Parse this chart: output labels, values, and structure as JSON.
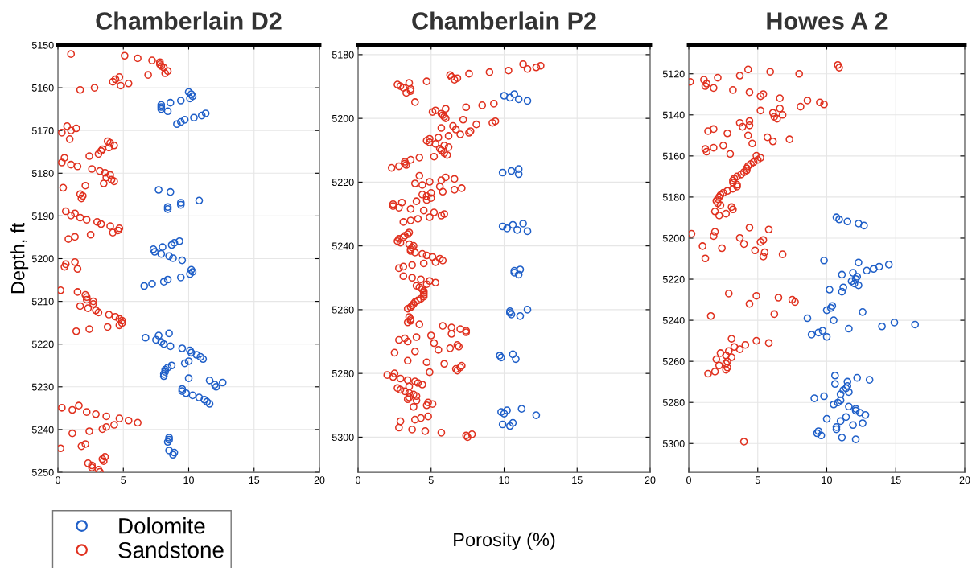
{
  "chart_data": [
    {
      "type": "scatter",
      "title": "Chamberlain D2",
      "ylabel": "Depth, ft",
      "xlim": [
        0,
        20
      ],
      "xticks": [
        0,
        5,
        10,
        15,
        20
      ],
      "ylim": [
        5250,
        5150
      ],
      "yticks": [
        5150,
        5160,
        5170,
        5180,
        5190,
        5200,
        5210,
        5220,
        5230,
        5240,
        5250
      ],
      "grid": true,
      "marker": "circle",
      "legend": "bottom left",
      "series": [
        {
          "name": "Dolomite",
          "color": "#1f5fc8",
          "x": [
            10.0,
            10.2,
            10.3,
            10.1,
            9.4,
            8.6,
            7.9,
            7.9,
            7.9,
            8.4,
            11.3,
            11.0,
            10.4,
            9.7,
            9.4,
            9.1,
            7.7,
            8.6,
            10.8,
            9.4,
            9.4,
            8.4,
            8.4,
            9.3,
            8.9,
            8.7,
            8.0,
            7.3,
            7.4,
            7.9,
            8.5,
            8.8,
            9.5,
            10.2,
            10.3,
            10.1,
            9.4,
            8.4,
            8.1,
            7.2,
            6.6,
            8.5,
            7.7,
            6.7,
            7.5,
            7.9,
            8.1,
            8.6,
            9.5,
            10.1,
            10.2,
            10.6,
            10.9,
            11.1,
            10.0,
            9.7,
            8.7,
            8.4,
            8.2,
            8.2,
            8.1,
            8.1,
            10.0,
            11.6,
            12.6,
            12.0,
            12.1,
            9.5,
            9.5,
            9.8,
            10.3,
            10.8,
            11.2,
            11.4,
            11.6,
            8.5,
            8.5,
            8.4,
            8.5,
            8.9,
            8.8
          ],
          "values": [
            5161.0,
            5161.5,
            5162.0,
            5162.5,
            5163.0,
            5163.5,
            5164.0,
            5164.5,
            5165.0,
            5165.5,
            5166.0,
            5166.5,
            5167.0,
            5167.5,
            5168.0,
            5168.5,
            5183.9,
            5184.4,
            5186.4,
            5186.9,
            5187.4,
            5187.9,
            5188.4,
            5195.9,
            5196.3,
            5196.8,
            5197.3,
            5197.8,
            5198.4,
            5198.9,
            5199.4,
            5199.9,
            5200.4,
            5202.6,
            5203.1,
            5203.6,
            5204.4,
            5204.9,
            5205.4,
            5205.9,
            5206.4,
            5217.5,
            5218.0,
            5218.5,
            5219.0,
            5219.5,
            5220.0,
            5220.5,
            5221.0,
            5221.5,
            5222.0,
            5222.5,
            5223.0,
            5223.5,
            5224.0,
            5224.5,
            5225.0,
            5225.5,
            5226.0,
            5226.5,
            5227.0,
            5227.5,
            5228.0,
            5228.5,
            5229.0,
            5229.5,
            5230.0,
            5230.5,
            5231.0,
            5231.5,
            5232.0,
            5232.5,
            5233.0,
            5233.5,
            5234.0,
            5241.9,
            5242.4,
            5242.9,
            5244.9,
            5245.4,
            5245.9
          ]
        },
        {
          "name": "Sandstone",
          "color": "#e0301e",
          "x": [
            1.0,
            5.1,
            6.1,
            7.2,
            7.8,
            7.8,
            7.9,
            8.1,
            8.4,
            8.2,
            6.9,
            4.7,
            4.4,
            4.2,
            5.4,
            4.8,
            2.8,
            1.7,
            0.7,
            1.4,
            1.0,
            0.3,
            0.9,
            3.8,
            4.0,
            4.3,
            3.9,
            3.4,
            3.3,
            3.1,
            2.4,
            0.5,
            0.3,
            1.0,
            1.5,
            2.6,
            3.2,
            3.6,
            4.0,
            3.7,
            4.1,
            4.3,
            3.5,
            2.1,
            0.4,
            1.7,
            1.9,
            1.8,
            0.6,
            1.3,
            1.0,
            1.7,
            2.2,
            3.0,
            3.3,
            4.0,
            4.7,
            4.6,
            4.2,
            2.5,
            1.3,
            0.8,
            1.3,
            0.6,
            0.5,
            1.5,
            0.2,
            1.5,
            2.1,
            2.2,
            2.2,
            2.7,
            2.7,
            1.7,
            2.3,
            2.9,
            3.1,
            3.9,
            4.4,
            4.7,
            4.9,
            4.9,
            4.7,
            3.8,
            2.4,
            1.4,
            1.6,
            0.3,
            1.1,
            2.2,
            2.9,
            3.7,
            4.7,
            5.4,
            6.1,
            4.3,
            3.7,
            3.4,
            2.4,
            1.1,
            2.1,
            1.8,
            0.2,
            3.6,
            3.4,
            3.5,
            2.3,
            2.6,
            2.6,
            3.1,
            3.2
          ],
          "values": [
            5152.1,
            5152.5,
            5153.1,
            5153.6,
            5154.0,
            5154.5,
            5154.9,
            5155.3,
            5156.1,
            5156.6,
            5157.0,
            5157.5,
            5158.0,
            5158.6,
            5159.0,
            5159.5,
            5160.0,
            5160.5,
            5169.0,
            5169.5,
            5170.0,
            5170.5,
            5172.0,
            5172.5,
            5172.9,
            5173.5,
            5174.0,
            5174.4,
            5174.8,
            5175.5,
            5176.0,
            5176.4,
            5177.5,
            5178.0,
            5178.4,
            5179.0,
            5179.5,
            5179.9,
            5180.4,
            5181.0,
            5181.5,
            5181.9,
            5182.4,
            5182.9,
            5183.4,
            5184.9,
            5185.3,
            5185.9,
            5188.9,
            5189.4,
            5189.9,
            5190.4,
            5190.9,
            5191.4,
            5191.9,
            5192.4,
            5192.9,
            5193.4,
            5193.9,
            5194.4,
            5194.9,
            5195.4,
            5200.8,
            5201.3,
            5201.9,
            5202.4,
            5207.4,
            5207.8,
            5208.5,
            5209.0,
            5209.6,
            5210.0,
            5210.6,
            5211.1,
            5211.6,
            5212.1,
            5212.6,
            5213.1,
            5213.6,
            5214.1,
            5214.5,
            5215.1,
            5215.6,
            5216.0,
            5216.5,
            5217.0,
            5234.4,
            5234.9,
            5235.4,
            5235.9,
            5236.4,
            5236.9,
            5237.4,
            5237.9,
            5238.4,
            5238.9,
            5239.4,
            5239.9,
            5240.4,
            5240.9,
            5243.4,
            5243.9,
            5244.4,
            5246.4,
            5246.9,
            5247.4,
            5247.9,
            5248.4,
            5248.9,
            5249.4,
            5249.9
          ]
        }
      ]
    },
    {
      "type": "scatter",
      "title": "Chamberlain P2",
      "xlabel": "Porosity (%)",
      "xlim": [
        0,
        20
      ],
      "xticks": [
        0,
        5,
        10,
        15,
        20
      ],
      "ylim": [
        5311,
        5177
      ],
      "yticks": [
        5180,
        5200,
        5220,
        5240,
        5260,
        5280,
        5300
      ],
      "grid": true,
      "marker": "circle",
      "series": [
        {
          "color": "#1f5fc8",
          "x": [
            10.7,
            10.0,
            10.4,
            11.0,
            11.6,
            11.0,
            10.5,
            9.9,
            11.0,
            11.3,
            10.6,
            9.9,
            10.2,
            10.9,
            11.6,
            11.1,
            10.7,
            10.7,
            11.0,
            11.6,
            10.4,
            10.4,
            10.5,
            11.1,
            10.6,
            9.7,
            9.8,
            10.8,
            11.2,
            10.2,
            9.8,
            10.0,
            12.2,
            10.6,
            9.9,
            10.4
          ],
          "values": [
            5192.4,
            5192.9,
            5193.5,
            5194.0,
            5194.5,
            5215.9,
            5216.5,
            5217.0,
            5217.5,
            5233.0,
            5233.4,
            5233.9,
            5234.5,
            5235.0,
            5235.4,
            5247.4,
            5247.8,
            5248.4,
            5249.0,
            5260.0,
            5260.5,
            5261.0,
            5261.5,
            5262.0,
            5274.0,
            5274.4,
            5275.0,
            5275.5,
            5291.1,
            5291.6,
            5292.1,
            5292.6,
            5293.1,
            5295.5,
            5296.0,
            5296.5
          ]
        },
        {
          "color": "#e0301e",
          "x": [
            11.3,
            12.5,
            12.2,
            11.6,
            10.3,
            9.0,
            7.6,
            6.3,
            6.4,
            6.8,
            6.6,
            4.7,
            3.5,
            2.7,
            2.9,
            3.1,
            3.6,
            3.6,
            3.3,
            3.9,
            9.3,
            8.5,
            7.4,
            6.0,
            5.3,
            5.1,
            5.7,
            5.8,
            5.9,
            6.0,
            7.2,
            9.4,
            9.2,
            8.1,
            6.5,
            5.7,
            6.7,
            7.7,
            7.6,
            7.0,
            6.2,
            5.5,
            4.9,
            4.7,
            4.9,
            5.3,
            5.9,
            6.2,
            5.6,
            5.7,
            5.9,
            6.1,
            5.2,
            4.2,
            3.6,
            3.2,
            3.2,
            3.3,
            2.8,
            2.3,
            4.2,
            6.0,
            6.6,
            5.7,
            4.9,
            3.9,
            4.4,
            5.6,
            7.1,
            6.6,
            5.8,
            5.0,
            4.4,
            4.7,
            5.0,
            4.7,
            4.0,
            3.0,
            2.4,
            2.4,
            2.8,
            3.6,
            4.5,
            5.2,
            5.9,
            5.7,
            4.9,
            4.1,
            3.6,
            3.1,
            3.5,
            3.4,
            3.2,
            3.1,
            2.8,
            2.7,
            2.9,
            3.5,
            3.8,
            3.7,
            3.6,
            3.6,
            3.9,
            4.4,
            4.7,
            5.1,
            5.6,
            5.8,
            5.3,
            4.5,
            3.7,
            3.1,
            2.8,
            3.1,
            3.7,
            4.3,
            4.9,
            5.3,
            4.7,
            4.0,
            4.2,
            4.4,
            4.5,
            4.5,
            4.5,
            4.5,
            4.3,
            4.1,
            3.9,
            3.8,
            3.7,
            3.6,
            3.4,
            3.5,
            3.6,
            3.6,
            3.4,
            4.2,
            5.8,
            6.4,
            7.0,
            7.4,
            7.4,
            6.4,
            5.0,
            4.0,
            3.2,
            2.8,
            3.4,
            5.2,
            6.8,
            6.9,
            6.3,
            5.5,
            3.9,
            2.5,
            3.4,
            4.7,
            5.9,
            7.1,
            7.0,
            6.7,
            6.8,
            4.9,
            2.5,
            2.0,
            2.4,
            2.9,
            3.4,
            3.9,
            4.1,
            4.4,
            3.5,
            2.7,
            2.9,
            3.2,
            3.5,
            3.8,
            4.0,
            3.5,
            3.4,
            4.0,
            4.8,
            5.1,
            4.7,
            3.8,
            4.8,
            4.3,
            3.9,
            2.9,
            2.8,
            3.7,
            4.6,
            5.7,
            7.8,
            7.4,
            7.5
          ],
          "values": [
            5183.0,
            5183.5,
            5184.0,
            5184.5,
            5185.0,
            5185.5,
            5186.0,
            5186.4,
            5187.0,
            5187.4,
            5187.9,
            5188.4,
            5188.9,
            5189.4,
            5189.9,
            5190.4,
            5190.8,
            5191.4,
            5192.0,
            5194.9,
            5195.4,
            5195.9,
            5196.5,
            5197.0,
            5197.5,
            5198.0,
            5198.5,
            5199.0,
            5199.5,
            5200.0,
            5200.4,
            5200.9,
            5201.4,
            5201.9,
            5202.4,
            5203.0,
            5203.5,
            5204.0,
            5204.5,
            5205.0,
            5205.5,
            5206.0,
            5206.4,
            5207.0,
            5207.5,
            5208.0,
            5208.5,
            5209.0,
            5209.5,
            5210.0,
            5210.9,
            5211.5,
            5212.0,
            5212.3,
            5213.0,
            5213.6,
            5214.2,
            5214.6,
            5215.0,
            5215.5,
            5218.0,
            5218.5,
            5219.0,
            5219.4,
            5219.9,
            5220.4,
            5220.9,
            5221.4,
            5221.9,
            5222.4,
            5223.0,
            5223.4,
            5223.9,
            5224.4,
            5225.0,
            5225.6,
            5226.0,
            5226.4,
            5226.9,
            5227.5,
            5228.0,
            5228.4,
            5228.9,
            5229.5,
            5230.0,
            5230.5,
            5231.0,
            5231.5,
            5232.0,
            5232.5,
            5235.8,
            5236.3,
            5236.8,
            5237.3,
            5237.8,
            5238.5,
            5239.0,
            5239.5,
            5240.0,
            5240.5,
            5241.1,
            5241.6,
            5242.1,
            5242.5,
            5243.0,
            5243.5,
            5244.0,
            5244.6,
            5245.1,
            5245.5,
            5246.0,
            5246.5,
            5247.0,
            5249.5,
            5250.0,
            5250.5,
            5251.0,
            5251.5,
            5252.0,
            5252.5,
            5253.0,
            5253.6,
            5254.2,
            5254.7,
            5255.3,
            5255.9,
            5256.6,
            5257.1,
            5257.6,
            5258.2,
            5258.7,
            5259.2,
            5259.7,
            5262.3,
            5263.0,
            5263.5,
            5264.0,
            5264.6,
            5265.1,
            5265.6,
            5266.1,
            5266.6,
            5267.1,
            5267.6,
            5268.1,
            5268.6,
            5269.0,
            5269.5,
            5270.0,
            5270.5,
            5271.1,
            5271.6,
            5272.1,
            5272.6,
            5273.1,
            5273.5,
            5276.0,
            5276.5,
            5277.0,
            5277.6,
            5278.1,
            5278.6,
            5279.1,
            5279.6,
            5280.0,
            5280.5,
            5281.1,
            5281.6,
            5282.1,
            5282.5,
            5283.0,
            5283.5,
            5284.1,
            5284.6,
            5285.1,
            5285.6,
            5286.1,
            5286.6,
            5287.1,
            5287.5,
            5288.1,
            5288.5,
            5289.1,
            5289.6,
            5290.0,
            5290.5,
            5293.5,
            5294.0,
            5294.5,
            5295.0,
            5297.0,
            5297.6,
            5298.1,
            5298.6,
            5299.1,
            5299.5,
            5300.0
          ]
        }
      ]
    },
    {
      "type": "scatter",
      "title": "Howes A 2",
      "xlim": [
        0,
        20
      ],
      "xticks": [
        0,
        5,
        10,
        15,
        20
      ],
      "ylim": [
        5314,
        5106
      ],
      "yticks": [
        5120,
        5140,
        5160,
        5180,
        5200,
        5220,
        5240,
        5260,
        5280,
        5300
      ],
      "grid": true,
      "marker": "circle",
      "series": [
        {
          "color": "#1f5fc8",
          "x": [
            10.7,
            10.9,
            11.5,
            12.3,
            12.7,
            9.8,
            12.3,
            14.5,
            13.8,
            13.4,
            12.9,
            11.9,
            11.1,
            12.2,
            12.1,
            11.8,
            12.0,
            12.3,
            11.2,
            10.2,
            11.1,
            10.4,
            10.3,
            10.0,
            12.6,
            8.6,
            10.5,
            14.9,
            16.4,
            14.0,
            11.6,
            9.7,
            9.4,
            8.9,
            10.0,
            10.6,
            12.2,
            13.1,
            11.5,
            10.6,
            11.5,
            11.4,
            11.2,
            11.6,
            11.0,
            9.8,
            9.1,
            11.0,
            10.8,
            10.5,
            11.6,
            12.1,
            12.1,
            12.4,
            12.8,
            11.4,
            10.0,
            11.0,
            12.6,
            11.9,
            10.7,
            10.7,
            9.4,
            9.3,
            9.6,
            11.1,
            12.1
          ],
          "values": [
            5189.9,
            5190.9,
            5191.9,
            5192.9,
            5193.9,
            5210.9,
            5211.9,
            5212.9,
            5213.9,
            5215.0,
            5215.8,
            5216.9,
            5217.8,
            5218.8,
            5219.9,
            5221.0,
            5222.1,
            5223.0,
            5224.0,
            5225.1,
            5226.1,
            5233.0,
            5234.0,
            5235.1,
            5236.0,
            5239.0,
            5240.0,
            5241.1,
            5242.1,
            5243.0,
            5244.1,
            5245.1,
            5246.0,
            5247.0,
            5248.1,
            5266.9,
            5268.0,
            5269.0,
            5269.9,
            5271.0,
            5272.0,
            5273.1,
            5274.0,
            5275.0,
            5276.0,
            5277.0,
            5278.0,
            5279.0,
            5280.1,
            5281.0,
            5282.0,
            5283.1,
            5284.0,
            5285.0,
            5286.1,
            5287.1,
            5288.0,
            5289.1,
            5290.1,
            5291.0,
            5292.0,
            5293.1,
            5294.0,
            5295.0,
            5296.1,
            5297.1,
            5298.0
          ]
        },
        {
          "color": "#e0301e",
          "x": [
            10.8,
            10.9,
            4.3,
            5.9,
            8.0,
            3.7,
            2.1,
            1.1,
            0.1,
            1.3,
            1.2,
            1.8,
            3.2,
            4.4,
            5.4,
            5.2,
            6.6,
            8.6,
            9.5,
            9.8,
            8.1,
            6.6,
            5.2,
            6.1,
            6.8,
            6.2,
            6.4,
            4.4,
            3.7,
            4.4,
            3.9,
            1.8,
            1.4,
            2.8,
            4.3,
            5.7,
            7.3,
            6.1,
            4.6,
            2.5,
            1.8,
            1.2,
            1.3,
            3.0,
            4.9,
            5.2,
            5.0,
            4.7,
            4.5,
            4.3,
            4.2,
            4.2,
            4.0,
            3.8,
            3.5,
            3.3,
            3.2,
            3.2,
            3.5,
            3.5,
            3.2,
            2.8,
            2.5,
            2.3,
            2.2,
            2.1,
            2.0,
            2.1,
            2.3,
            3.1,
            3.2,
            1.9,
            2.7,
            2.2,
            4.4,
            5.8,
            1.9,
            0.2,
            1.8,
            3.7,
            5.4,
            5.2,
            4.0,
            1.0,
            2.4,
            4.8,
            5.5,
            6.8,
            5.4,
            1.2,
            2.9,
            4.9,
            6.5,
            7.5,
            7.7,
            4.4,
            6.2,
            1.6,
            3.1,
            4.9,
            5.8,
            4.1,
            3.3,
            3.7,
            2.9,
            2.3,
            2.7,
            3.1,
            2.0,
            2.8,
            2.7,
            2.2,
            2.8,
            2.7,
            1.9,
            1.4,
            4.0
          ],
          "values": [
            5115.7,
            5117.0,
            5117.9,
            5119.0,
            5120.0,
            5120.9,
            5121.9,
            5122.9,
            5123.9,
            5124.8,
            5126.0,
            5126.9,
            5127.9,
            5129.0,
            5129.9,
            5130.9,
            5131.9,
            5133.0,
            5133.9,
            5134.9,
            5136.0,
            5136.9,
            5137.9,
            5139.0,
            5140.0,
            5140.9,
            5141.9,
            5143.0,
            5143.9,
            5145.1,
            5145.8,
            5146.9,
            5147.9,
            5149.0,
            5150.0,
            5150.9,
            5151.9,
            5152.9,
            5153.9,
            5154.9,
            5156.0,
            5156.6,
            5157.9,
            5159.0,
            5159.9,
            5160.9,
            5161.9,
            5163.0,
            5163.9,
            5164.9,
            5166.0,
            5167.0,
            5167.9,
            5169.0,
            5170.0,
            5171.0,
            5171.9,
            5173.0,
            5174.0,
            5174.9,
            5176.0,
            5177.0,
            5177.9,
            5179.0,
            5180.0,
            5181.0,
            5181.9,
            5183.0,
            5184.0,
            5184.9,
            5186.0,
            5187.0,
            5188.1,
            5189.0,
            5194.9,
            5195.8,
            5196.9,
            5197.9,
            5199.0,
            5199.9,
            5200.9,
            5201.9,
            5202.9,
            5203.9,
            5204.9,
            5206.0,
            5206.9,
            5207.9,
            5209.0,
            5209.9,
            5227.0,
            5228.1,
            5229.0,
            5230.0,
            5231.1,
            5232.0,
            5237.0,
            5237.9,
            5249.0,
            5250.0,
            5251.1,
            5252.0,
            5253.0,
            5254.1,
            5255.0,
            5256.0,
            5257.1,
            5258.0,
            5259.0,
            5260.1,
            5261.1,
            5262.0,
            5263.0,
            5264.1,
            5265.0,
            5266.0,
            5299.1
          ]
        }
      ]
    }
  ]
}
